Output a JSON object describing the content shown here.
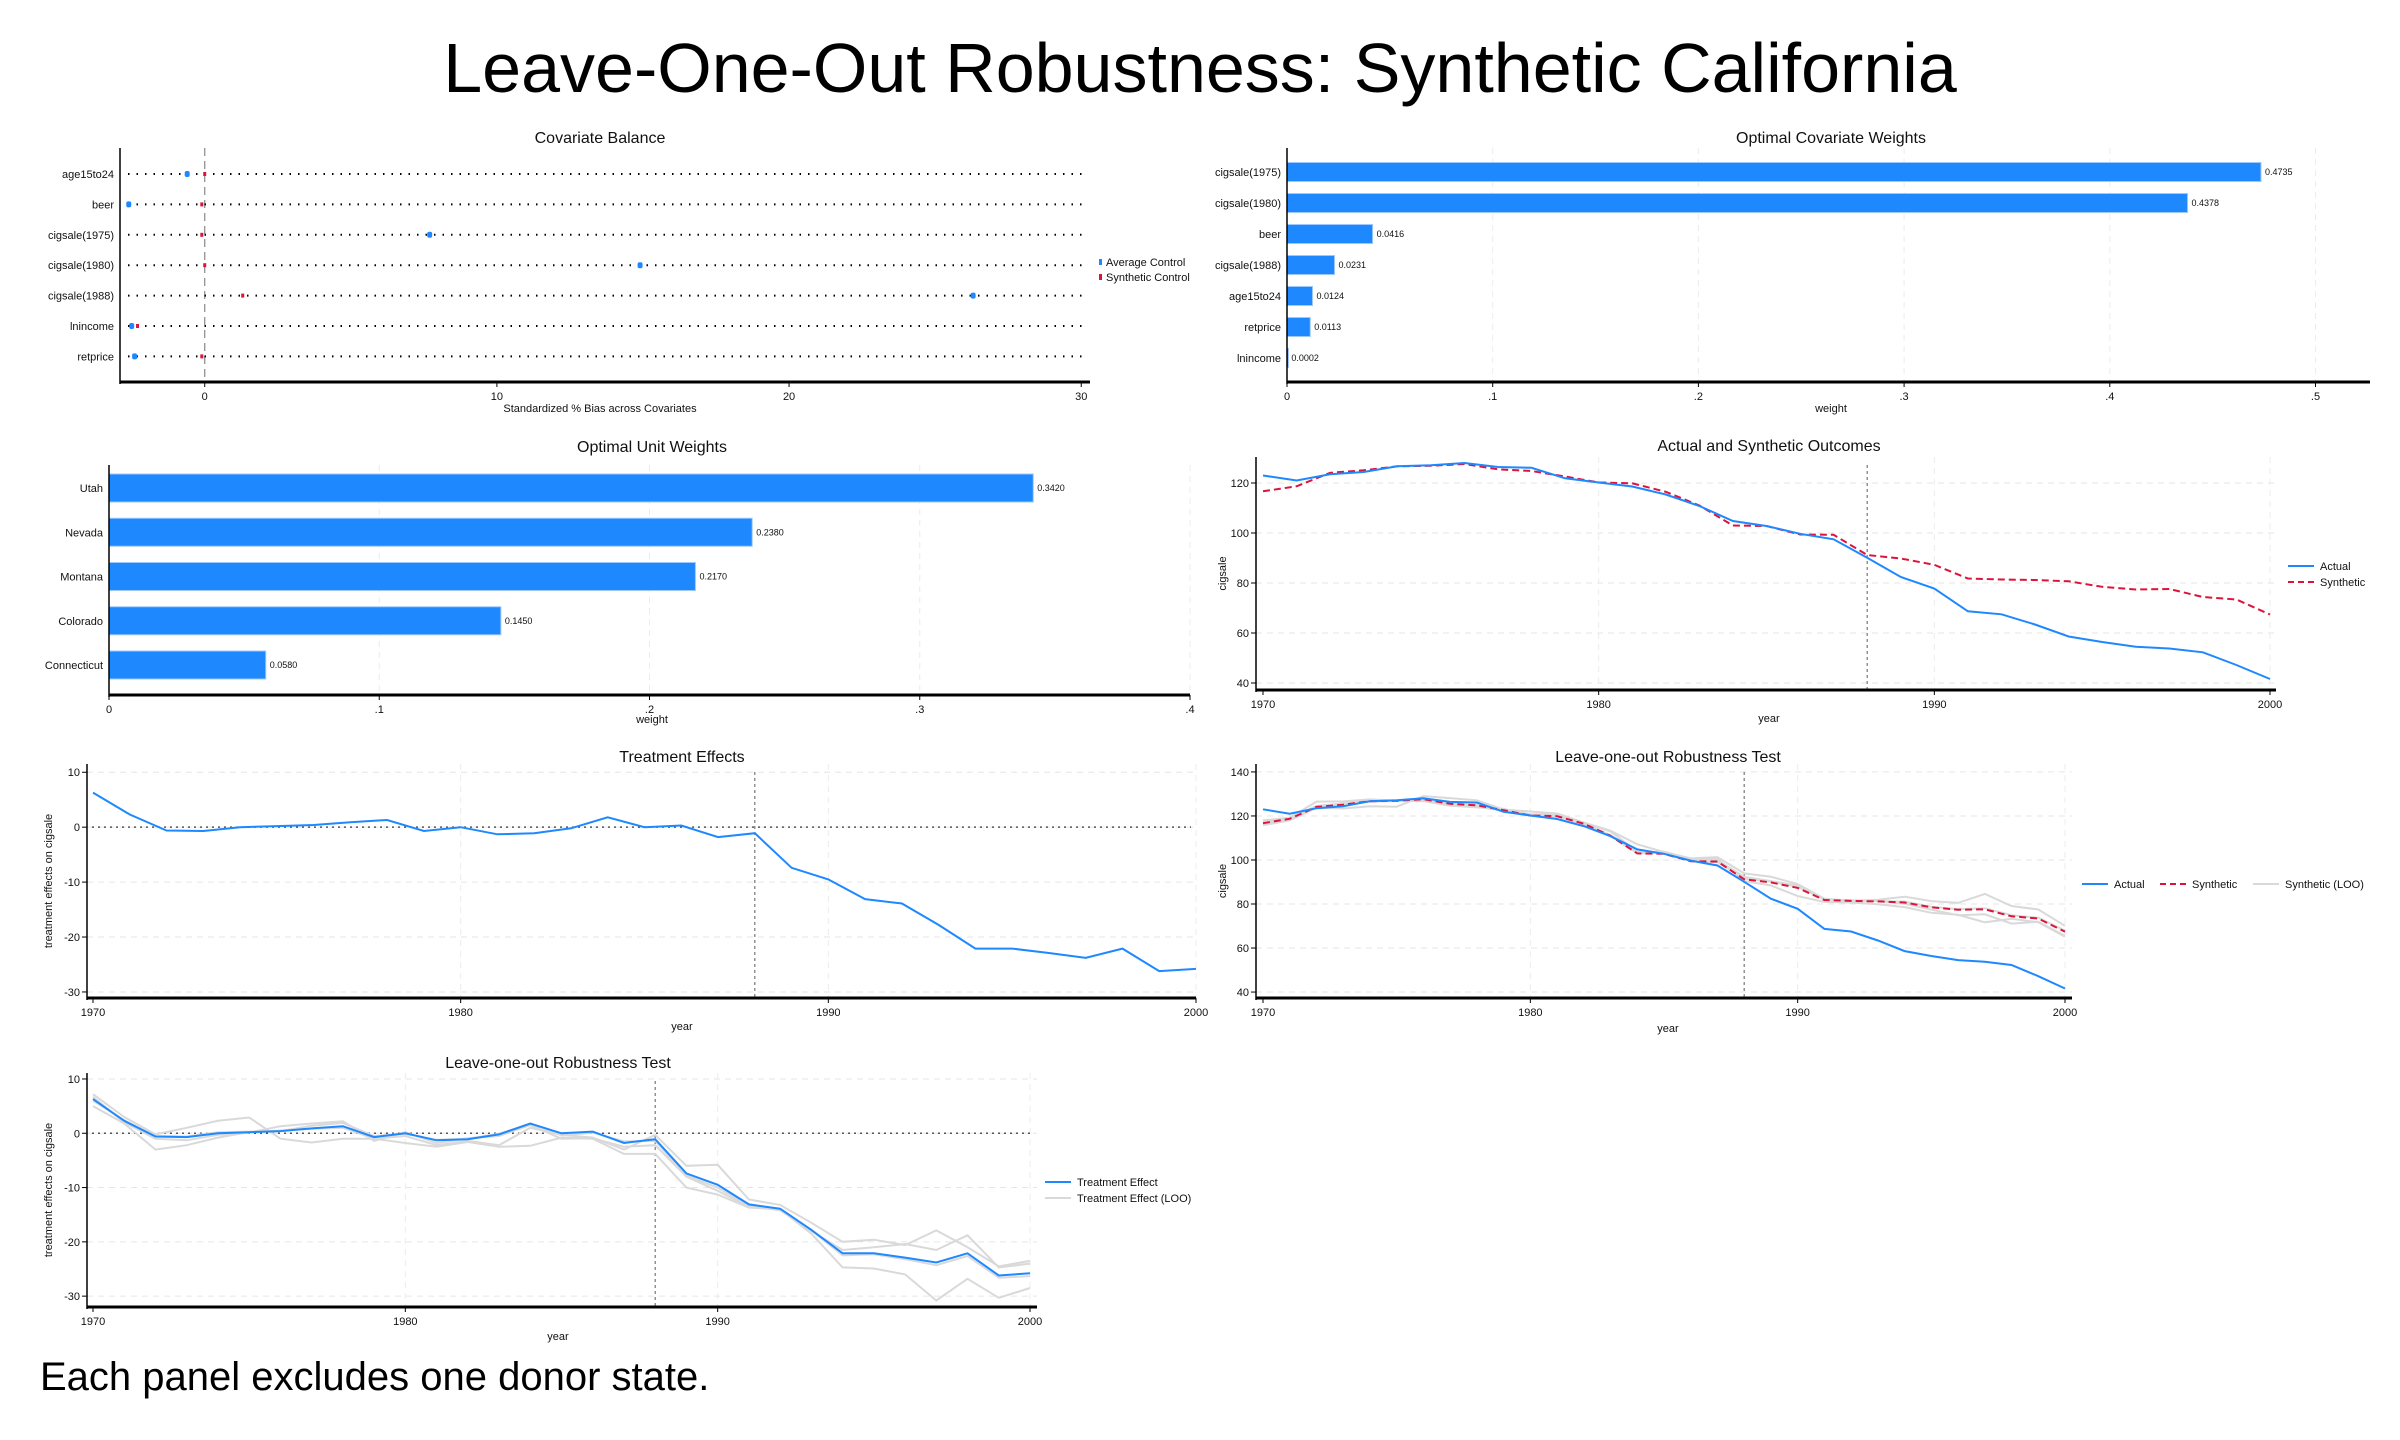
{
  "title": "Leave-One-Out Robustness: Synthetic California",
  "footnote": "Each panel excludes one donor state.",
  "colors": {
    "actual": "#1E88FF",
    "synthetic": "#DC143C",
    "loo": "#D9D9D9",
    "bar": "#1E88FF"
  },
  "chart_data": [
    {
      "type": "scatter",
      "title": "Covariate Balance",
      "xlabel": "Standardized % Bias across Covariates",
      "categories": [
        "age15to24",
        "beer",
        "cigsale(1975)",
        "cigsale(1980)",
        "cigsale(1988)",
        "lnincome",
        "retprice"
      ],
      "series": [
        {
          "name": "Average Control",
          "values": [
            -0.6,
            -2.6,
            7.7,
            14.9,
            26.3,
            -2.5,
            -2.4
          ],
          "color": "#1E88FF"
        },
        {
          "name": "Synthetic Control",
          "values": [
            0.0,
            -0.1,
            -0.1,
            0.0,
            1.3,
            -2.3,
            -0.1
          ],
          "color": "#DC143C"
        }
      ],
      "xlim": [
        -2.9,
        30.3
      ],
      "xticks": [
        0,
        10,
        20,
        30
      ],
      "reference_line": 0,
      "legend": "right"
    },
    {
      "type": "bar",
      "orientation": "horizontal",
      "title": "Optimal Covariate Weights",
      "xlabel": "weight",
      "categories": [
        "cigsale(1975)",
        "cigsale(1980)",
        "beer",
        "cigsale(1988)",
        "age15to24",
        "retprice",
        "lnincome"
      ],
      "values": [
        0.4735,
        0.4378,
        0.0416,
        0.0231,
        0.0124,
        0.0113,
        0.0002
      ],
      "labels": [
        "0.4735",
        "0.4378",
        "0.0416",
        "0.0231",
        "0.0124",
        "0.0113",
        "0.0002"
      ],
      "xlim": [
        0,
        0.5265
      ],
      "xticks": [
        "0",
        ".1",
        ".2",
        ".3",
        ".4",
        ".5"
      ],
      "xtick_values": [
        0,
        0.1,
        0.2,
        0.3,
        0.4,
        0.5
      ]
    },
    {
      "type": "bar",
      "orientation": "horizontal",
      "title": "Optimal Unit Weights",
      "xlabel": "weight",
      "categories": [
        "Utah",
        "Nevada",
        "Montana",
        "Colorado",
        "Connecticut"
      ],
      "values": [
        0.342,
        0.238,
        0.217,
        0.145,
        0.058
      ],
      "labels": [
        "0.3420",
        "0.2380",
        "0.2170",
        "0.1450",
        "0.0580"
      ],
      "xlim": [
        0,
        0.4
      ],
      "xticks": [
        "0",
        ".1",
        ".2",
        ".3",
        ".4"
      ],
      "xtick_values": [
        0,
        0.1,
        0.2,
        0.3,
        0.4
      ]
    },
    {
      "type": "line",
      "title": "Actual and Synthetic Outcomes",
      "xlabel": "year",
      "ylabel": "cigsale",
      "x": [
        1970,
        1971,
        1972,
        1973,
        1974,
        1975,
        1976,
        1977,
        1978,
        1979,
        1980,
        1981,
        1982,
        1983,
        1984,
        1985,
        1986,
        1987,
        1988,
        1989,
        1990,
        1991,
        1992,
        1993,
        1994,
        1995,
        1996,
        1997,
        1998,
        1999,
        2000
      ],
      "series": [
        {
          "name": "Actual",
          "values": [
            123.0,
            121.0,
            123.5,
            124.4,
            126.7,
            127.1,
            128.0,
            126.4,
            126.1,
            121.9,
            120.2,
            118.6,
            115.4,
            110.8,
            104.8,
            102.8,
            99.7,
            97.5,
            90.1,
            82.4,
            77.8,
            68.7,
            67.5,
            63.4,
            58.6,
            56.4,
            54.5,
            53.8,
            52.3,
            47.2,
            41.6
          ],
          "color": "#1E88FF",
          "style": "solid"
        },
        {
          "name": "Synthetic",
          "values": [
            116.7,
            118.7,
            124.1,
            125.1,
            126.7,
            126.9,
            127.6,
            125.5,
            124.8,
            122.6,
            120.2,
            119.9,
            116.5,
            111.0,
            103.0,
            102.8,
            99.4,
            99.3,
            91.2,
            89.8,
            87.3,
            81.8,
            81.4,
            81.2,
            80.7,
            78.5,
            77.4,
            77.6,
            74.4,
            73.4,
            67.4
          ],
          "color": "#DC143C",
          "style": "dashed"
        }
      ],
      "ylim": [
        37.2,
        130.4
      ],
      "yticks": [
        40,
        60,
        80,
        100,
        120
      ],
      "xticks": [
        1970,
        1980,
        1990,
        2000
      ],
      "treatment_year": 1988,
      "legend": "right"
    },
    {
      "type": "line",
      "title": "Treatment Effects",
      "xlabel": "year",
      "ylabel": "treatment effects on cigsale",
      "x": [
        1970,
        1971,
        1972,
        1973,
        1974,
        1975,
        1976,
        1977,
        1978,
        1979,
        1980,
        1981,
        1982,
        1983,
        1984,
        1985,
        1986,
        1987,
        1988,
        1989,
        1990,
        1991,
        1992,
        1993,
        1994,
        1995,
        1996,
        1997,
        1998,
        1999,
        2000
      ],
      "series": [
        {
          "values": [
            6.3,
            2.3,
            -0.6,
            -0.7,
            0.0,
            0.2,
            0.4,
            0.9,
            1.3,
            -0.7,
            0.0,
            -1.3,
            -1.1,
            -0.2,
            1.8,
            0.0,
            0.3,
            -1.8,
            -1.1,
            -7.4,
            -9.5,
            -13.1,
            -13.9,
            -17.8,
            -22.1,
            -22.1,
            -22.9,
            -23.8,
            -22.1,
            -26.2,
            -25.8
          ],
          "color": "#1E88FF",
          "style": "solid"
        }
      ],
      "ylim": [
        -31.1,
        11.5
      ],
      "yticks": [
        -30,
        -20,
        -10,
        0,
        10
      ],
      "xticks": [
        1970,
        1980,
        1990,
        2000
      ],
      "treatment_year": 1988,
      "reference_line": 0
    },
    {
      "type": "line",
      "title": "Leave-one-out Robustness Test",
      "xlabel": "year",
      "ylabel": "cigsale",
      "legend_labels": [
        "Actual",
        "Synthetic",
        "Synthetic (LOO)"
      ],
      "ylim": [
        37.3,
        143.6
      ],
      "yticks": [
        40,
        60,
        80,
        100,
        120,
        140
      ],
      "xticks": [
        1970,
        1980,
        1990,
        2000
      ],
      "treatment_year": 1988,
      "legend": "right"
    },
    {
      "type": "line",
      "title": "Leave-one-out Robustness Test",
      "xlabel": "year",
      "ylabel": "treatment effects on cigsale",
      "legend_labels": [
        "Treatment Effect",
        "Treatment Effect (LOO)"
      ],
      "loo_series": [
        [
          5.0,
          1.8,
          -3.0,
          -2.2,
          -0.8,
          0.2,
          0.5,
          0.8,
          1.0,
          -1.0,
          -1.8,
          -2.5,
          -1.6,
          -2.5,
          -2.3,
          -0.8,
          -1.0,
          -3.8,
          -3.8,
          -10.0,
          -11.3,
          -13.7,
          -14.0,
          -18.5,
          -24.7,
          -24.9,
          -26.0,
          -30.8,
          -26.8,
          -30.3,
          -28.5
        ],
        [
          7.2,
          3.0,
          -0.2,
          1.0,
          2.3,
          2.9,
          -1.0,
          -1.7,
          -1.0,
          -1.0,
          -0.5,
          -2.2,
          -1.4,
          -2.2,
          1.0,
          -0.3,
          -0.8,
          -3.0,
          -0.3,
          -6.0,
          -5.8,
          -12.2,
          -13.2,
          -16.5,
          -20.0,
          -19.6,
          -20.6,
          -17.9,
          -21.0,
          -24.5,
          -23.5
        ],
        [
          6.7,
          2.0,
          -1.0,
          -1.3,
          -0.3,
          0.1,
          1.3,
          1.8,
          2.2,
          -1.4,
          0.2,
          -1.8,
          -0.9,
          -0.5,
          1.5,
          -1.0,
          -0.9,
          -2.5,
          -2.2,
          -8.0,
          -10.6,
          -13.5,
          -14.0,
          -18.0,
          -21.5,
          -21.0,
          -20.4,
          -21.5,
          -18.8,
          -24.7,
          -24.0
        ],
        [
          6.0,
          2.4,
          -0.5,
          -0.6,
          0.2,
          0.3,
          0.4,
          1.4,
          1.9,
          -0.5,
          -0.1,
          -1.2,
          -1.0,
          -0.1,
          1.8,
          -0.4,
          0.1,
          -1.5,
          -1.4,
          -7.8,
          -10.0,
          -13.3,
          -14.2,
          -17.9,
          -22.5,
          -22.3,
          -23.2,
          -24.3,
          -22.6,
          -26.6,
          -26.3
        ]
      ],
      "ylim": [
        -32.0,
        11.1
      ],
      "yticks": [
        -30,
        -20,
        -10,
        0,
        10
      ],
      "xticks": [
        1970,
        1980,
        1990,
        2000
      ],
      "treatment_year": 1988,
      "reference_line": 0,
      "legend": "right"
    }
  ]
}
